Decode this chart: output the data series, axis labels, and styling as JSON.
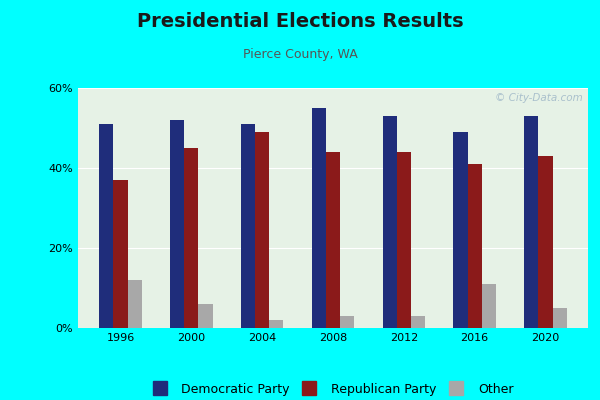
{
  "title": "Presidential Elections Results",
  "subtitle": "Pierce County, WA",
  "years": [
    1996,
    2000,
    2004,
    2008,
    2012,
    2016,
    2020
  ],
  "democratic": [
    51,
    52,
    51,
    55,
    53,
    49,
    53
  ],
  "republican": [
    37,
    45,
    49,
    44,
    44,
    41,
    43
  ],
  "other": [
    12,
    6,
    2,
    3,
    3,
    11,
    5
  ],
  "dem_color": "#1f2d7b",
  "rep_color": "#8b1a1a",
  "other_color": "#a8a8a8",
  "bg_color": "#e6f2e6",
  "outer_bg": "#00ffff",
  "ylim": [
    0,
    60
  ],
  "yticks": [
    0,
    20,
    40,
    60
  ],
  "ytick_labels": [
    "0%",
    "20%",
    "40%",
    "60%"
  ],
  "bar_width": 0.2,
  "title_fontsize": 14,
  "subtitle_fontsize": 9,
  "legend_fontsize": 9,
  "tick_fontsize": 8,
  "watermark": "© City-Data.com"
}
